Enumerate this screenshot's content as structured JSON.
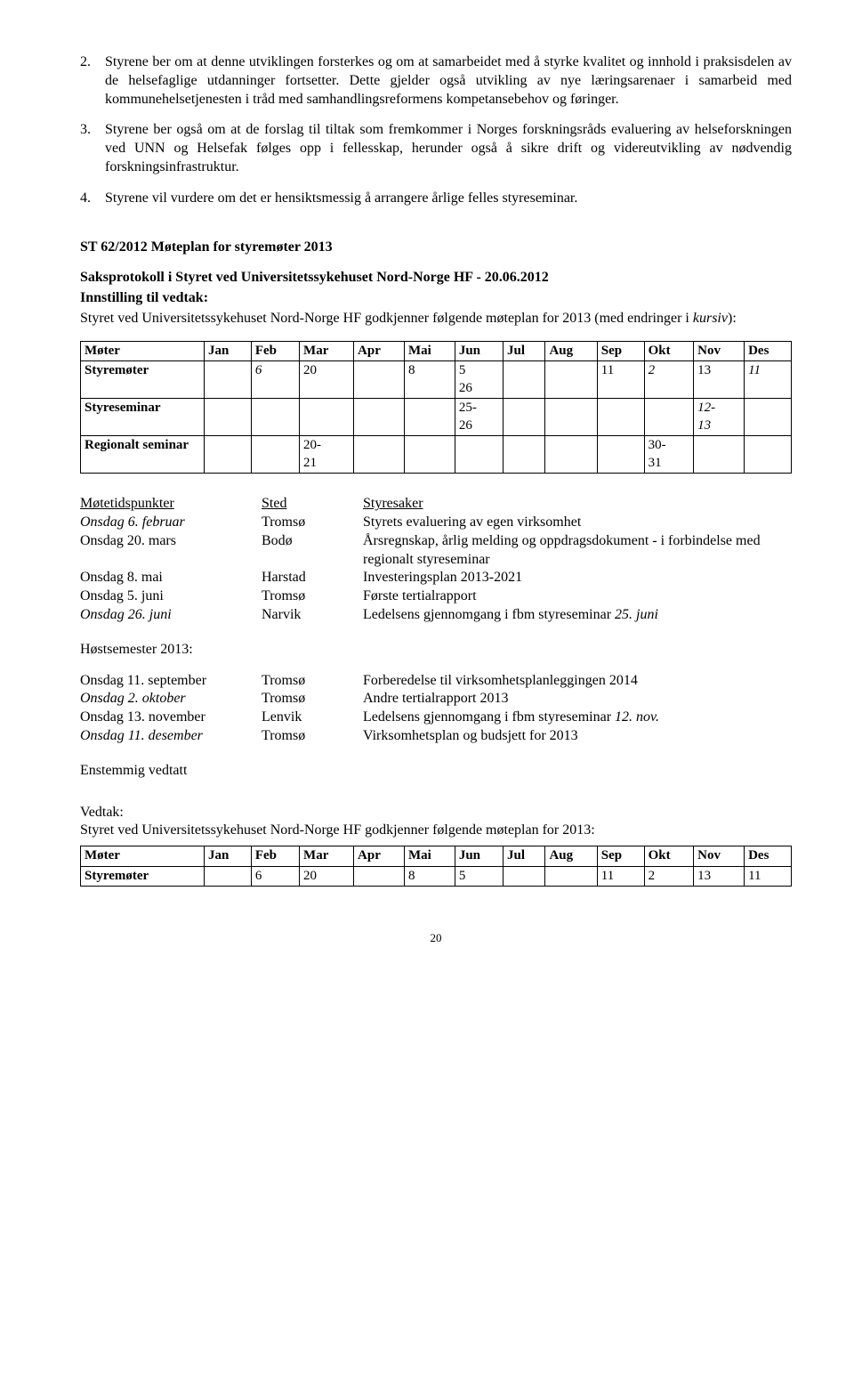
{
  "list": [
    {
      "num": "2.",
      "text": "Styrene ber om at denne utviklingen forsterkes og om at samarbeidet med å styrke kvalitet og innhold i praksisdelen av de helsefaglige utdanninger fortsetter. Dette gjelder også utvikling av nye læringsarenaer i samarbeid med kommunehelsetjenesten i tråd med samhandlingsreformens kompetansebehov og føringer."
    },
    {
      "num": "3.",
      "text": "Styrene ber også om at de forslag til tiltak som fremkommer i Norges forskningsråds evaluering av helseforskningen ved UNN og Helsefak følges opp i fellesskap, herunder også å sikre drift og videreutvikling av nødvendig forskningsinfrastruktur."
    },
    {
      "num": "4.",
      "text": "Styrene vil vurdere om det er hensiktsmessig å arrangere årlige felles styreseminar."
    }
  ],
  "section": {
    "title": "ST 62/2012 Møteplan for styremøter 2013",
    "protokoll": "Saksprotokoll i Styret ved Universitetssykehuset Nord-Norge HF - 20.06.2012",
    "innstilling": "Innstilling til vedtak:",
    "intro_a": "Styret ved Universitetssykehuset Nord-Norge HF godkjenner følgende møteplan for 2013 (med endringer i ",
    "intro_b": "kursiv",
    "intro_c": "):"
  },
  "sched_cols": [
    "Møter",
    "Jan",
    "Feb",
    "Mar",
    "Apr",
    "Mai",
    "Jun",
    "Jul",
    "Aug",
    "Sep",
    "Okt",
    "Nov",
    "Des"
  ],
  "sched1_rows": [
    {
      "label": "Styremøter",
      "cells": [
        "",
        "6",
        "20",
        "",
        "8",
        "5\n26",
        "",
        "",
        "11",
        "2",
        "13",
        "11"
      ],
      "italics": [
        false,
        true,
        false,
        false,
        false,
        false,
        false,
        false,
        false,
        true,
        false,
        true
      ]
    },
    {
      "label": "Styreseminar",
      "cells": [
        "",
        "",
        "",
        "",
        "",
        "25-\n26",
        "",
        "",
        "",
        "",
        "12-\n13",
        ""
      ],
      "italics": [
        false,
        false,
        false,
        false,
        false,
        false,
        false,
        false,
        false,
        false,
        true,
        false
      ]
    },
    {
      "label": "Regionalt seminar",
      "cells": [
        "",
        "",
        "20-\n21",
        "",
        "",
        "",
        "",
        "",
        "",
        "30-\n31",
        "",
        ""
      ],
      "italics": [
        false,
        false,
        false,
        false,
        false,
        false,
        false,
        false,
        false,
        false,
        false,
        false
      ]
    }
  ],
  "tab_hdr": [
    "Møtetidspunkter",
    "Sted",
    "Styresaker"
  ],
  "tab_rows_a": [
    {
      "c1": "Onsdag 6. februar",
      "c1_it": true,
      "c2": "Tromsø",
      "c3": "Styrets evaluering av egen virksomhet"
    },
    {
      "c1": "Onsdag 20. mars",
      "c1_it": false,
      "c2": "Bodø",
      "c3": "Årsregnskap, årlig melding og oppdragsdokument - i forbindelse med regionalt styreseminar"
    },
    {
      "c1": "Onsdag 8. mai",
      "c1_it": false,
      "c2": "Harstad",
      "c3": "Investeringsplan 2013-2021"
    },
    {
      "c1": "Onsdag 5. juni",
      "c1_it": false,
      "c2": "Tromsø",
      "c3": "Første tertialrapport"
    },
    {
      "c1": "Onsdag 26. juni",
      "c1_it": true,
      "c2": "Narvik",
      "c3": "Ledelsens gjennomgang i fbm styreseminar 25. juni",
      "c3_it_tail": "25. juni"
    }
  ],
  "host_label": "Høstsemester 2013:",
  "tab_rows_b": [
    {
      "c1": "Onsdag 11. september",
      "c1_it": false,
      "c2": "Tromsø",
      "c3": "Forberedelse til virksomhetsplanleggingen 2014"
    },
    {
      "c1": "Onsdag 2. oktober",
      "c1_it": true,
      "c2": "Tromsø",
      "c3": "Andre tertialrapport 2013"
    },
    {
      "c1": "Onsdag 13. november",
      "c1_it": false,
      "c2": "Lenvik",
      "c3": "Ledelsens gjennomgang i fbm styreseminar 12. nov.",
      "c3_it_tail": "12"
    },
    {
      "c1": "Onsdag 11. desember",
      "c1_it": true,
      "c2": "Tromsø",
      "c3": "Virksomhetsplan og budsjett for 2013"
    }
  ],
  "enstemmig": "Enstemmig vedtatt",
  "vedtak_label": "Vedtak:",
  "vedtak_text": "Styret ved Universitetssykehuset Nord-Norge HF godkjenner følgende møteplan for 2013:",
  "sched2_rows": [
    {
      "label": "Styremøter",
      "cells": [
        "",
        "6",
        "20",
        "",
        "8",
        "5",
        "",
        "",
        "11",
        "2",
        "13",
        "11"
      ],
      "italics": [
        false,
        false,
        false,
        false,
        false,
        false,
        false,
        false,
        false,
        false,
        false,
        false
      ]
    }
  ],
  "page": "20"
}
